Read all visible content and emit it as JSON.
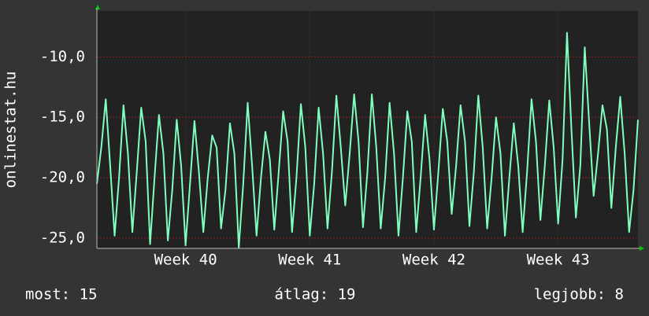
{
  "chart_data": {
    "type": "line",
    "y_label": "onlinestat.hu",
    "series": [
      {
        "name": null,
        "color": "#7fffbf",
        "values": [
          -20.5,
          -17.5,
          -13.5,
          -19,
          -24.8,
          -20,
          -14,
          -18,
          -24.5,
          -19.5,
          -14.2,
          -17,
          -25.5,
          -20,
          -14.8,
          -18,
          -25.2,
          -21,
          -15.2,
          -19,
          -25.6,
          -20.5,
          -15.3,
          -19.5,
          -24.5,
          -20,
          -16.5,
          -17.5,
          -24.2,
          -21,
          -15.5,
          -18,
          -25.8,
          -20.5,
          -13.8,
          -19,
          -24.8,
          -20,
          -16.2,
          -18.5,
          -24.3,
          -19.5,
          -14.5,
          -17,
          -24.5,
          -20,
          -13.9,
          -17.5,
          -24.8,
          -20.5,
          -14.2,
          -18,
          -24.2,
          -19.5,
          -13.2,
          -17.5,
          -22.3,
          -18,
          -13.1,
          -17,
          -24.1,
          -19.5,
          -13.1,
          -17.5,
          -24.2,
          -20,
          -13.8,
          -18,
          -24.8,
          -20,
          -14.5,
          -17,
          -24.5,
          -20,
          -14.8,
          -18.5,
          -24.3,
          -19.5,
          -14.3,
          -17,
          -23,
          -19,
          -14,
          -17,
          -24,
          -19.5,
          -13.2,
          -17.5,
          -24.2,
          -20,
          -15,
          -18,
          -24.8,
          -20,
          -15.5,
          -19,
          -24.5,
          -19.5,
          -13.5,
          -17,
          -23.5,
          -19,
          -13.6,
          -17.5,
          -23.8,
          -18.5,
          -8,
          -16,
          -23.3,
          -19,
          -9.2,
          -15.5,
          -21.5,
          -18,
          -14,
          -16,
          -22.5,
          -17.5,
          -13.3,
          -18,
          -24.5,
          -21,
          -15.2
        ]
      }
    ],
    "xlim": [
      0,
      122
    ],
    "xticks": [
      {
        "value": 20,
        "label": "Week 40"
      },
      {
        "value": 48,
        "label": "Week 41"
      },
      {
        "value": 76,
        "label": "Week 42"
      },
      {
        "value": 104,
        "label": "Week 43"
      }
    ],
    "ylim": [
      -25.85,
      -6.2
    ],
    "yticks": [
      {
        "value": -25,
        "label": "-25,0"
      },
      {
        "value": -20,
        "label": "-20,0"
      },
      {
        "value": -15,
        "label": "-15,0"
      },
      {
        "value": -10,
        "label": "-10,0"
      }
    ],
    "grid": true,
    "footer": [
      "most: 15",
      "átlag: 19",
      "legjobb: 8"
    ]
  }
}
